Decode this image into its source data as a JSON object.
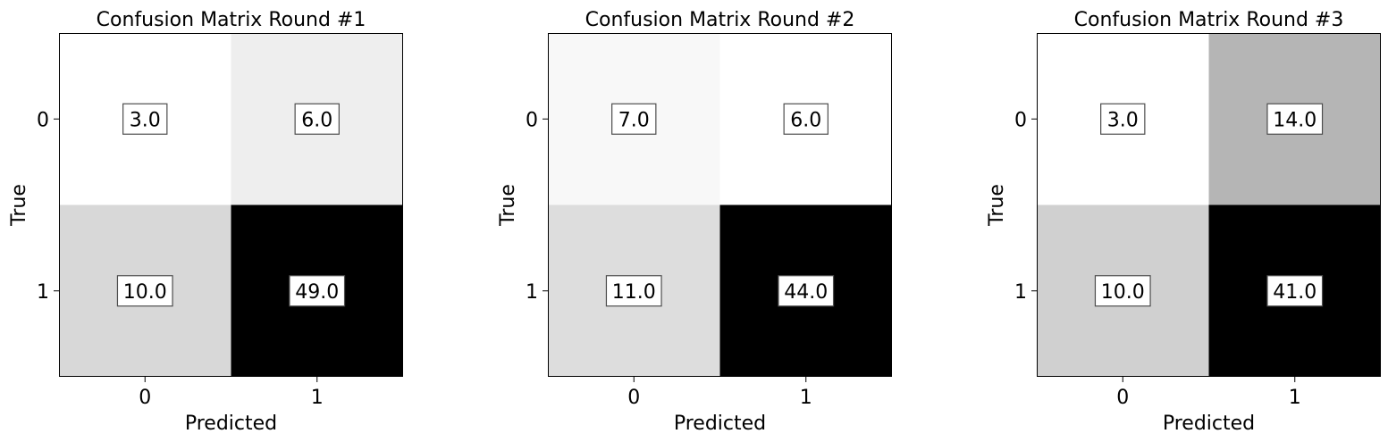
{
  "chart_data": [
    {
      "type": "heatmap",
      "title": "Confusion Matrix Round #1",
      "xlabel": "Predicted",
      "ylabel": "True",
      "x_ticks": [
        "0",
        "1"
      ],
      "y_ticks": [
        "0",
        "1"
      ],
      "values": [
        [
          3.0,
          6.0
        ],
        [
          10.0,
          49.0
        ]
      ],
      "cell_labels": [
        [
          "3.0",
          "6.0"
        ],
        [
          "10.0",
          "49.0"
        ]
      ],
      "colormap": "Greys",
      "grid": false,
      "legend": "none"
    },
    {
      "type": "heatmap",
      "title": "Confusion Matrix Round #2",
      "xlabel": "Predicted",
      "ylabel": "True",
      "x_ticks": [
        "0",
        "1"
      ],
      "y_ticks": [
        "0",
        "1"
      ],
      "values": [
        [
          7.0,
          6.0
        ],
        [
          11.0,
          44.0
        ]
      ],
      "cell_labels": [
        [
          "7.0",
          "6.0"
        ],
        [
          "11.0",
          "44.0"
        ]
      ],
      "colormap": "Greys",
      "grid": false,
      "legend": "none"
    },
    {
      "type": "heatmap",
      "title": "Confusion Matrix Round #3",
      "xlabel": "Predicted",
      "ylabel": "True",
      "x_ticks": [
        "0",
        "1"
      ],
      "y_ticks": [
        "0",
        "1"
      ],
      "values": [
        [
          3.0,
          14.0
        ],
        [
          10.0,
          41.0
        ]
      ],
      "cell_labels": [
        [
          "3.0",
          "14.0"
        ],
        [
          "10.0",
          "41.0"
        ]
      ],
      "colormap": "Greys",
      "grid": false,
      "legend": "none"
    }
  ]
}
